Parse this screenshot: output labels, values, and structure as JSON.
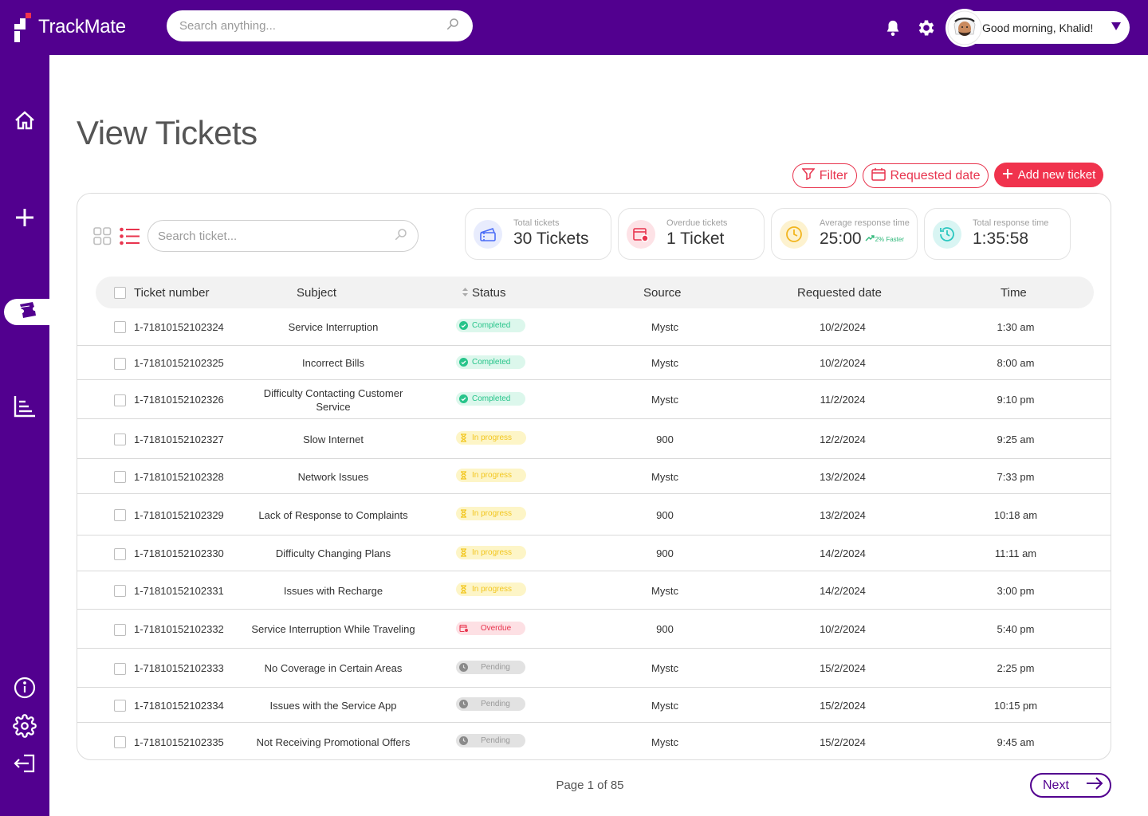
{
  "app": {
    "name": "TrackMate"
  },
  "header": {
    "search_placeholder": "Search anything...",
    "greeting": "Good morning, Khalid!",
    "icons": [
      "bell-icon",
      "gear-icon",
      "chevron-down-icon"
    ]
  },
  "sidebar": {
    "items": [
      {
        "icon": "home-icon"
      },
      {
        "icon": "plus-icon"
      },
      {
        "icon": "tickets-icon",
        "active": true
      },
      {
        "icon": "reports-icon"
      },
      {
        "icon": "info-icon"
      },
      {
        "icon": "settings-icon"
      },
      {
        "icon": "logout-icon"
      }
    ]
  },
  "page": {
    "title": "View Tickets"
  },
  "actions": {
    "filter_label": "Filter",
    "date_label": "Requested date",
    "add_label": "Add new ticket"
  },
  "table_search": {
    "placeholder": "Search ticket..."
  },
  "stats": [
    {
      "label": "Total tickets",
      "value": "30 Tickets",
      "icon": "ticket-icon",
      "color": "#4a6cf7"
    },
    {
      "label": "Overdue tickets",
      "value": "1 Ticket",
      "icon": "calendar-alert-icon",
      "color": "#e8344e"
    },
    {
      "label": "Average response time",
      "value": "25:00",
      "trend": "2% Faster",
      "icon": "clock-icon",
      "color": "#f2b51f"
    },
    {
      "label": "Total response time",
      "value": "1:35:58",
      "icon": "history-icon",
      "color": "#2cc7c0"
    }
  ],
  "columns": {
    "ticket_number": "Ticket number",
    "subject": "Subject",
    "status": "Status",
    "source": "Source",
    "requested_date": "Requested date",
    "time": "Time"
  },
  "rows": [
    {
      "ticket": "1-71810152102324",
      "subject": "Service Interruption",
      "status": "Completed",
      "status_type": "completed",
      "source": "Mystc",
      "date": "10/2/2024",
      "time": "1:30 am"
    },
    {
      "ticket": "1-71810152102325",
      "subject": "Incorrect Bills",
      "status": "Completed",
      "status_type": "completed",
      "source": "Mystc",
      "date": "10/2/2024",
      "time": "8:00 am"
    },
    {
      "ticket": "1-71810152102326",
      "subject": "Difficulty Contacting Customer Service",
      "status": "Completed",
      "status_type": "completed",
      "source": "Mystc",
      "date": "11/2/2024",
      "time": "9:10 pm"
    },
    {
      "ticket": "1-71810152102327",
      "subject": "Slow Internet",
      "status": "In progress",
      "status_type": "progress",
      "source": "900",
      "date": "12/2/2024",
      "time": "9:25 am"
    },
    {
      "ticket": "1-71810152102328",
      "subject": "Network Issues",
      "status": "In progress",
      "status_type": "progress",
      "source": "Mystc",
      "date": "13/2/2024",
      "time": "7:33 pm"
    },
    {
      "ticket": "1-71810152102329",
      "subject": "Lack of Response to Complaints",
      "status": "In progress",
      "status_type": "progress",
      "source": "900",
      "date": "13/2/2024",
      "time": "10:18 am"
    },
    {
      "ticket": "1-71810152102330",
      "subject": "Difficulty Changing Plans",
      "status": "In progress",
      "status_type": "progress",
      "source": "900",
      "date": "14/2/2024",
      "time": "11:11 am"
    },
    {
      "ticket": "1-71810152102331",
      "subject": "Issues with Recharge",
      "status": "In progress",
      "status_type": "progress",
      "source": "Mystc",
      "date": "14/2/2024",
      "time": "3:00 pm"
    },
    {
      "ticket": "1-71810152102332",
      "subject": "Service Interruption While Traveling",
      "status": "Overdue",
      "status_type": "overdue",
      "source": "900",
      "date": "10/2/2024",
      "time": "5:40 pm"
    },
    {
      "ticket": "1-71810152102333",
      "subject": "No Coverage in Certain Areas",
      "status": "Pending",
      "status_type": "pending",
      "source": "Mystc",
      "date": "15/2/2024",
      "time": "2:25 pm"
    },
    {
      "ticket": "1-71810152102334",
      "subject": "Issues with the Service App",
      "status": "Pending",
      "status_type": "pending",
      "source": "Mystc",
      "date": "15/2/2024",
      "time": "10:15 pm"
    },
    {
      "ticket": "1-71810152102335",
      "subject": "Not Receiving Promotional Offers",
      "status": "Pending",
      "status_type": "pending",
      "source": "Mystc",
      "date": "15/2/2024",
      "time": "9:45 am"
    }
  ],
  "pagination": {
    "text": "Page 1 of 85",
    "next_label": "Next"
  }
}
